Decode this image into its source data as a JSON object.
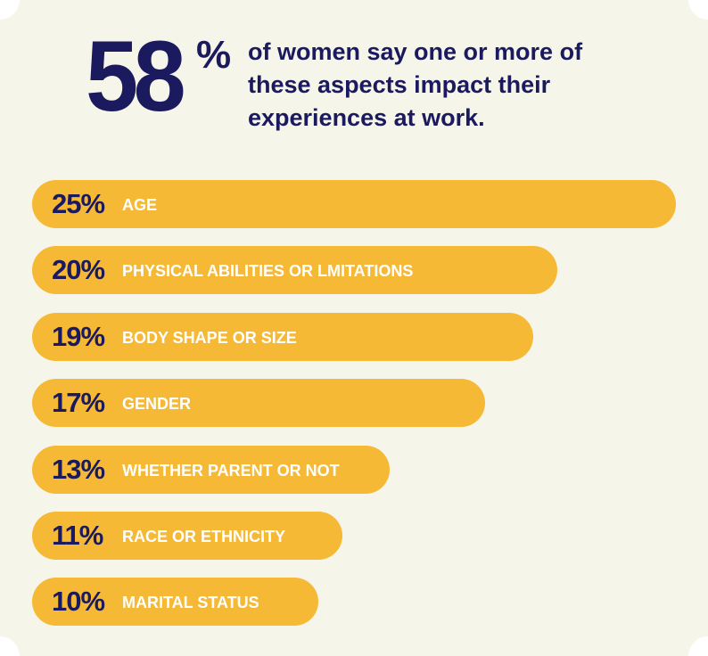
{
  "chart_data": {
    "type": "bar",
    "orientation": "horizontal",
    "headline": {
      "number": "58",
      "unit": "%",
      "text": "of women say one or more of these aspects impact their experiences at work."
    },
    "categories": [
      "AGE",
      "PHYSICAL ABILITIES OR LMITATIONS",
      "BODY SHAPE OR SIZE",
      "GENDER",
      "WHETHER PARENT OR NOT",
      "RACE OR ETHNICITY",
      "MARITAL STATUS"
    ],
    "values": [
      25,
      20,
      19,
      17,
      13,
      11,
      10
    ],
    "value_labels": [
      "25%",
      "20%",
      "19%",
      "17%",
      "13%",
      "11%",
      "10%"
    ],
    "color": "#f5b935"
  }
}
